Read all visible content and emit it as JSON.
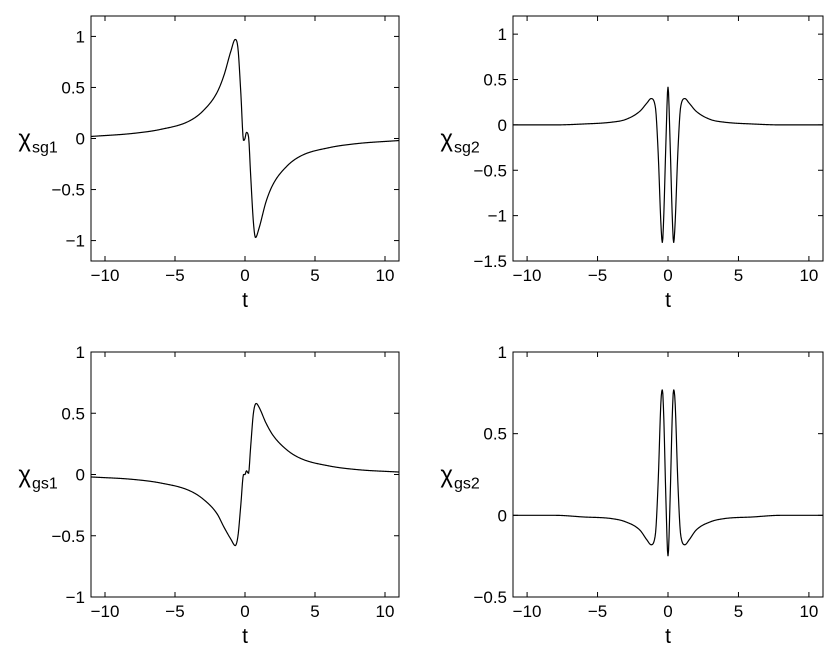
{
  "figure": {
    "panels": [
      {
        "id": "sg1",
        "ylabel_symbol": "χ",
        "ylabel_sub": "sg1",
        "xlabel": "t",
        "xticks": [
          "−10",
          "−5",
          "0",
          "5",
          "10"
        ],
        "yticks": [
          "−1",
          "−0.5",
          "0",
          "0.5",
          "1"
        ]
      },
      {
        "id": "sg2",
        "ylabel_symbol": "χ",
        "ylabel_sub": "sg2",
        "xlabel": "t",
        "xticks": [
          "−10",
          "−5",
          "0",
          "5",
          "10"
        ],
        "yticks": [
          "−1.5",
          "−1",
          "−0.5",
          "0",
          "0.5",
          "1"
        ]
      },
      {
        "id": "gs1",
        "ylabel_symbol": "χ",
        "ylabel_sub": "gs1",
        "xlabel": "t",
        "xticks": [
          "−10",
          "−5",
          "0",
          "5",
          "10"
        ],
        "yticks": [
          "−1",
          "−0.5",
          "0",
          "0.5",
          "1"
        ]
      },
      {
        "id": "gs2",
        "ylabel_symbol": "χ",
        "ylabel_sub": "gs2",
        "xlabel": "t",
        "xticks": [
          "−10",
          "−5",
          "0",
          "5",
          "10"
        ],
        "yticks": [
          "−0.5",
          "0",
          "0.5",
          "1"
        ]
      }
    ]
  },
  "chart_data": [
    {
      "type": "line",
      "title": "",
      "xlabel": "t",
      "ylabel": "χsg1",
      "xlim": [
        -11,
        11
      ],
      "ylim": [
        -1.2,
        1.2
      ],
      "xticks": [
        -10,
        -5,
        0,
        5,
        10
      ],
      "yticks": [
        -1,
        -0.5,
        0,
        0.5,
        1
      ],
      "grid": false,
      "series": [
        {
          "x": [
            -11,
            -8,
            -6,
            -4,
            -3,
            -2,
            -1.5,
            -1,
            -0.7,
            -0.5,
            -0.3,
            -0.1,
            0,
            0.1,
            0.25,
            0.4,
            0.6,
            0.75,
            1,
            1.5,
            2,
            3,
            4,
            6,
            8,
            11
          ],
          "y": [
            0.02,
            0.05,
            0.09,
            0.17,
            0.27,
            0.45,
            0.62,
            0.86,
            0.97,
            0.88,
            0.45,
            -0.02,
            0.0,
            0.06,
            0.02,
            -0.35,
            -0.82,
            -0.97,
            -0.88,
            -0.62,
            -0.45,
            -0.27,
            -0.17,
            -0.09,
            -0.05,
            -0.02
          ]
        }
      ]
    },
    {
      "type": "line",
      "title": "",
      "xlabel": "t",
      "ylabel": "χsg2",
      "xlim": [
        -11,
        11
      ],
      "ylim": [
        -1.5,
        1.2
      ],
      "xticks": [
        -10,
        -5,
        0,
        5,
        10
      ],
      "yticks": [
        -1.5,
        -1,
        -0.5,
        0,
        0.5,
        1
      ],
      "grid": false,
      "series": [
        {
          "x": [
            -11,
            -8,
            -6,
            -4,
            -3,
            -2,
            -1.5,
            -1.2,
            -0.9,
            -0.7,
            -0.5,
            -0.4,
            -0.3,
            -0.15,
            0,
            0.15,
            0.3,
            0.4,
            0.5,
            0.7,
            0.9,
            1.2,
            1.5,
            2,
            3,
            4,
            6,
            8,
            11
          ],
          "y": [
            0.0,
            0.0,
            0.01,
            0.03,
            0.06,
            0.15,
            0.24,
            0.29,
            0.2,
            -0.3,
            -1.1,
            -1.3,
            -1.0,
            -0.2,
            0.42,
            -0.2,
            -1.0,
            -1.3,
            -1.1,
            -0.3,
            0.2,
            0.29,
            0.24,
            0.15,
            0.06,
            0.03,
            0.01,
            0.0,
            0.0
          ]
        }
      ]
    },
    {
      "type": "line",
      "title": "",
      "xlabel": "t",
      "ylabel": "χgs1",
      "xlim": [
        -11,
        11
      ],
      "ylim": [
        -1,
        1
      ],
      "xticks": [
        -10,
        -5,
        0,
        5,
        10
      ],
      "yticks": [
        -1,
        -0.5,
        0,
        0.5,
        1
      ],
      "grid": false,
      "series": [
        {
          "x": [
            -11,
            -8,
            -6,
            -4,
            -3,
            -2,
            -1.5,
            -1,
            -0.7,
            -0.5,
            -0.3,
            -0.1,
            0,
            0.1,
            0.25,
            0.4,
            0.6,
            0.8,
            1,
            1.5,
            2,
            3,
            4,
            6,
            8,
            11
          ],
          "y": [
            -0.02,
            -0.04,
            -0.07,
            -0.13,
            -0.2,
            -0.32,
            -0.43,
            -0.53,
            -0.58,
            -0.5,
            -0.25,
            0.0,
            0.0,
            0.03,
            0.01,
            0.22,
            0.5,
            0.58,
            0.55,
            0.42,
            0.32,
            0.2,
            0.13,
            0.07,
            0.04,
            0.02
          ]
        }
      ]
    },
    {
      "type": "line",
      "title": "",
      "xlabel": "t",
      "ylabel": "χgs2",
      "xlim": [
        -11,
        11
      ],
      "ylim": [
        -0.5,
        1
      ],
      "xticks": [
        -10,
        -5,
        0,
        5,
        10
      ],
      "yticks": [
        -0.5,
        0,
        0.5,
        1
      ],
      "grid": false,
      "series": [
        {
          "x": [
            -11,
            -8,
            -6,
            -4,
            -3,
            -2,
            -1.5,
            -1.2,
            -0.9,
            -0.7,
            -0.5,
            -0.4,
            -0.3,
            -0.15,
            0,
            0.15,
            0.3,
            0.4,
            0.5,
            0.7,
            0.9,
            1.2,
            1.5,
            2,
            3,
            4,
            6,
            8,
            11
          ],
          "y": [
            0.0,
            0.0,
            -0.01,
            -0.02,
            -0.04,
            -0.09,
            -0.15,
            -0.18,
            -0.12,
            0.2,
            0.7,
            0.77,
            0.6,
            0.1,
            -0.25,
            0.1,
            0.6,
            0.77,
            0.7,
            0.2,
            -0.12,
            -0.18,
            -0.15,
            -0.09,
            -0.04,
            -0.02,
            -0.01,
            0.0,
            0.0
          ]
        }
      ]
    }
  ]
}
